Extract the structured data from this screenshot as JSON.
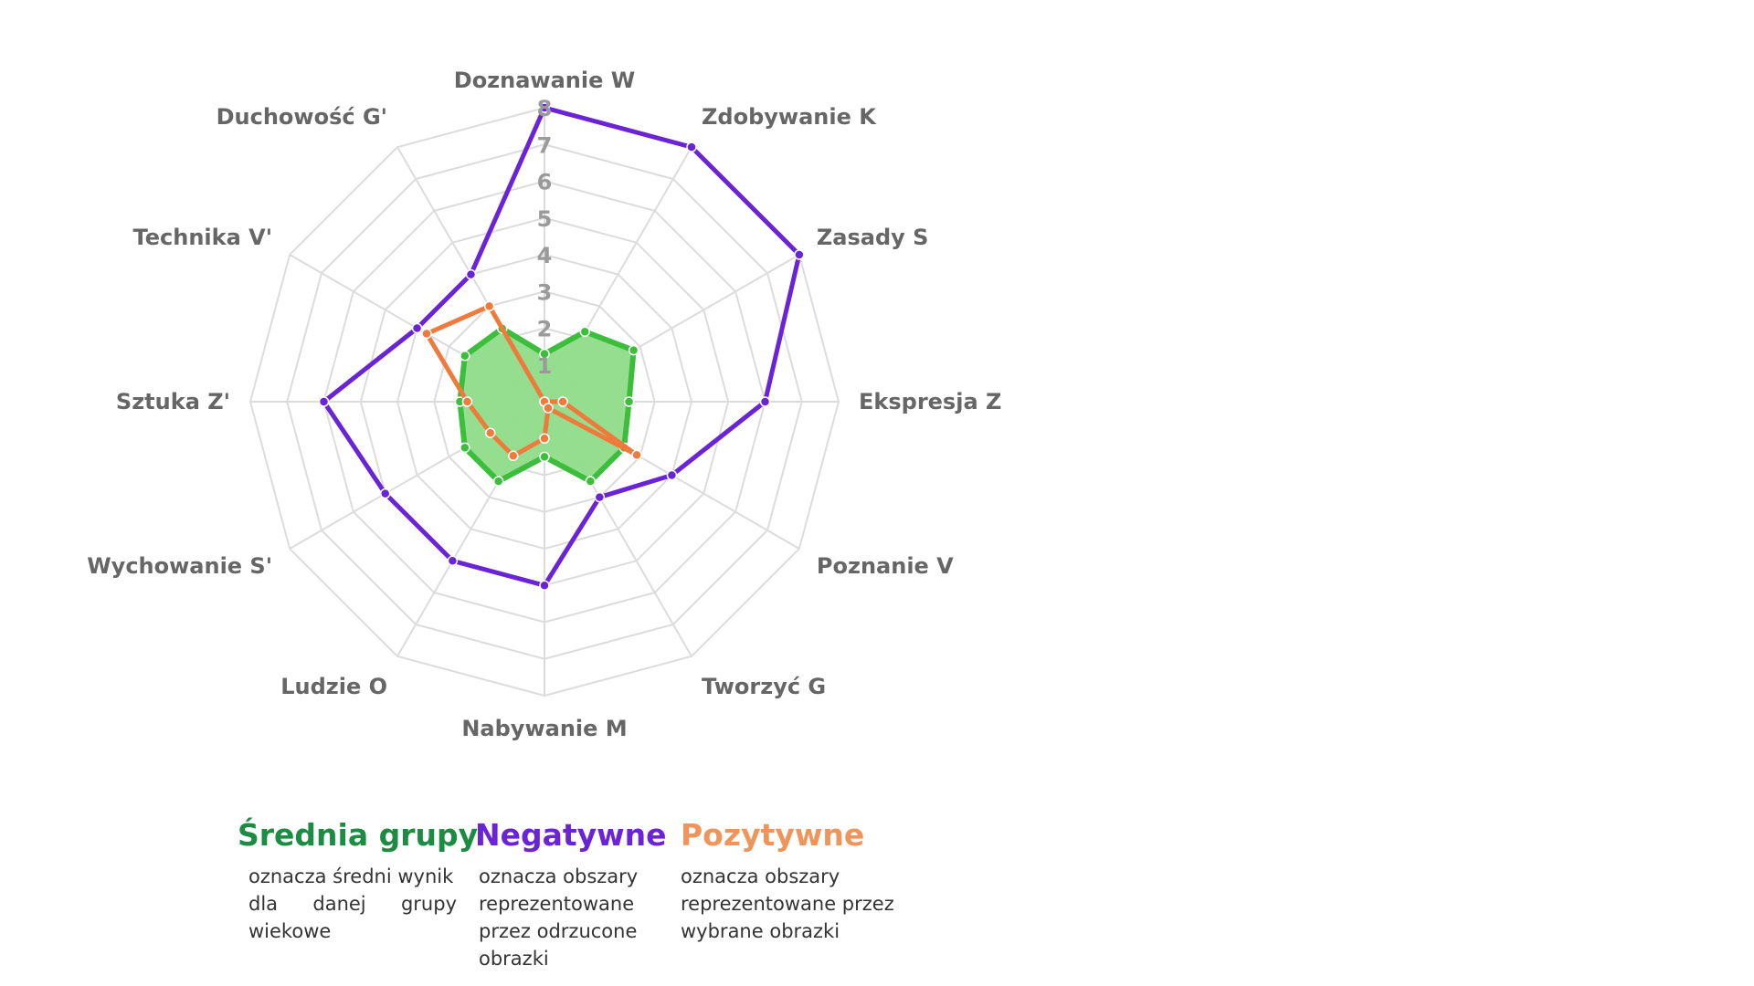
{
  "chart_data": {
    "type": "radar",
    "axes": [
      "Doznawanie W",
      "Zdobywanie K",
      "Zasady S",
      "Ekspresja Z",
      "Poznanie V",
      "Tworzyć G",
      "Nabywanie M",
      "Ludzie O",
      "Wychowanie S'",
      "Sztuka Z'",
      "Technika V'",
      "Duchowość G'"
    ],
    "r_ticks": [
      "1",
      "2",
      "3",
      "4",
      "5",
      "6",
      "7",
      "8"
    ],
    "r_range": [
      0,
      8
    ],
    "grid": true,
    "series": [
      {
        "name": "Średnia grupy",
        "color": "#3cbe3c",
        "fill": "#8fdc8a",
        "values": [
          1.3,
          2.2,
          2.8,
          2.3,
          2.5,
          2.5,
          1.5,
          2.5,
          2.5,
          2.3,
          2.5,
          2.3
        ]
      },
      {
        "name": "Negatywne",
        "color": "#6a23d6",
        "values": [
          8,
          8,
          8,
          6,
          4,
          3,
          5,
          5,
          5,
          6,
          4,
          4
        ]
      },
      {
        "name": "Pozytywne",
        "color": "#ee7a3c",
        "values": [
          0,
          0,
          0,
          0.5,
          2.9,
          0.2,
          1,
          1.7,
          1.7,
          2.1,
          3.7,
          3
        ]
      }
    ]
  },
  "legend": [
    {
      "title": "Średnia grupy",
      "color": "#1b8c41",
      "lines": [
        "oznacza średni wynik",
        "dla danej grupy",
        "wiekowe"
      ]
    },
    {
      "title": "Negatywne",
      "color": "#6a23d6",
      "lines": [
        "oznacza obszary",
        "reprezentowane",
        "przez odrzucone",
        "obrazki"
      ]
    },
    {
      "title": "Pozytywne",
      "color": "#f0955a",
      "lines": [
        "oznacza obszary",
        "reprezentowane przez",
        "wybrane obrazki"
      ]
    }
  ]
}
